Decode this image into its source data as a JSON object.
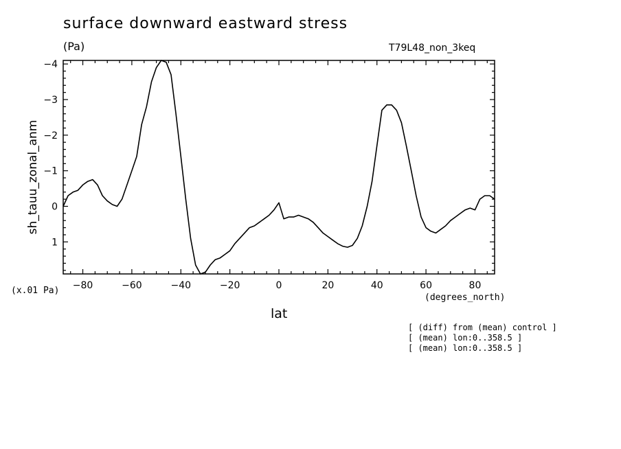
{
  "chart_data": {
    "type": "line",
    "title": "surface downward eastward stress",
    "units": "(Pa)",
    "run_label": "T79L48_non_3keq",
    "ylabel": "sh_tauu_zonal_anm",
    "xlabel": "lat",
    "x_units": "(degrees_north)",
    "scale_note": "(x.01 Pa)",
    "xlim": [
      -88,
      88
    ],
    "ylim": [
      -4.1,
      1.9
    ],
    "y_inverted": true,
    "xticks": [
      -80,
      -60,
      -40,
      -20,
      0,
      20,
      40,
      60,
      80
    ],
    "xtick_labels": [
      "−80",
      "−60",
      "−40",
      "−20",
      "0",
      "20",
      "40",
      "60",
      "80"
    ],
    "yticks": [
      -4,
      -3,
      -2,
      -1,
      0,
      1
    ],
    "ytick_labels": [
      "−4",
      "−3",
      "−2",
      "−1",
      "0",
      "1"
    ],
    "x": [
      -88,
      -86,
      -84,
      -82,
      -80,
      -78,
      -76,
      -74,
      -72,
      -70,
      -68,
      -66,
      -64,
      -62,
      -60,
      -58,
      -56,
      -54,
      -52,
      -50,
      -48,
      -46,
      -44,
      -42,
      -40,
      -38,
      -36,
      -34,
      -32,
      -30,
      -28,
      -26,
      -24,
      -22,
      -20,
      -18,
      -16,
      -14,
      -12,
      -10,
      -8,
      -6,
      -4,
      -2,
      0,
      2,
      4,
      6,
      8,
      10,
      12,
      14,
      16,
      18,
      20,
      22,
      24,
      26,
      28,
      30,
      32,
      34,
      36,
      38,
      40,
      42,
      44,
      46,
      48,
      50,
      52,
      54,
      56,
      58,
      60,
      62,
      64,
      66,
      68,
      70,
      72,
      74,
      76,
      78,
      80,
      82,
      84,
      86,
      88
    ],
    "series": [
      {
        "values": [
          0.0,
          -0.3,
          -0.4,
          -0.45,
          -0.6,
          -0.7,
          -0.75,
          -0.6,
          -0.3,
          -0.15,
          -0.05,
          0.0,
          -0.2,
          -0.6,
          -1.0,
          -1.4,
          -2.3,
          -2.8,
          -3.5,
          -3.9,
          -4.1,
          -4.05,
          -3.7,
          -2.6,
          -1.4,
          -0.2,
          0.9,
          1.65,
          1.9,
          1.85,
          1.65,
          1.5,
          1.45,
          1.35,
          1.25,
          1.05,
          0.9,
          0.75,
          0.6,
          0.55,
          0.45,
          0.35,
          0.25,
          0.1,
          -0.1,
          0.35,
          0.3,
          0.3,
          0.25,
          0.3,
          0.35,
          0.45,
          0.6,
          0.75,
          0.85,
          0.95,
          1.05,
          1.12,
          1.15,
          1.1,
          0.9,
          0.55,
          0.0,
          -0.7,
          -1.7,
          -2.7,
          -2.85,
          -2.85,
          -2.7,
          -2.35,
          -1.7,
          -1.0,
          -0.3,
          0.3,
          0.6,
          0.7,
          0.75,
          0.65,
          0.55,
          0.4,
          0.3,
          0.2,
          0.1,
          0.05,
          0.1,
          -0.2,
          -0.3,
          -0.3,
          -0.2
        ]
      }
    ],
    "grid": false
  },
  "notes": [
    "[ (diff) from (mean) control ]",
    "[ (mean) lon:0..358.5 ]",
    "[ (mean) lon:0..358.5 ]"
  ]
}
